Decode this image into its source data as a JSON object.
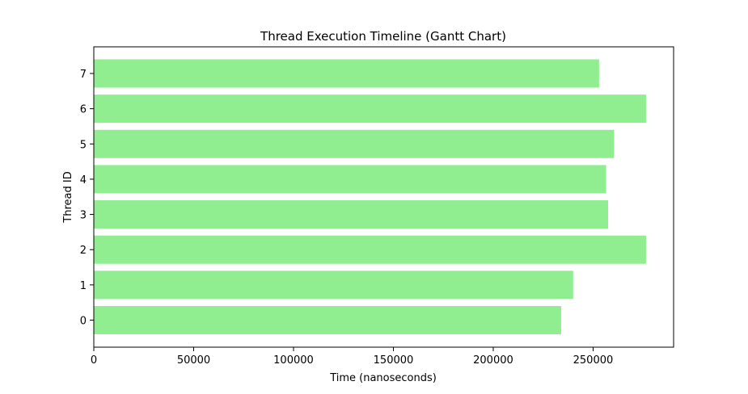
{
  "chart_data": {
    "type": "bar",
    "orientation": "horizontal",
    "title": "Thread Execution Timeline (Gantt Chart)",
    "xlabel": "Time (nanoseconds)",
    "ylabel": "Thread ID",
    "categories": [
      "0",
      "1",
      "2",
      "3",
      "4",
      "5",
      "6",
      "7"
    ],
    "starts": [
      0,
      0,
      0,
      0,
      0,
      0,
      0,
      0
    ],
    "values": [
      234000,
      240000,
      276500,
      257500,
      256500,
      260500,
      276500,
      253000
    ],
    "xlim": [
      0,
      290300
    ],
    "x_ticks": [
      0,
      50000,
      100000,
      150000,
      200000,
      250000
    ],
    "x_tick_labels": [
      "0",
      "50000",
      "100000",
      "150000",
      "200000",
      "250000"
    ],
    "grid": false,
    "bar_color": "#90EE90"
  }
}
